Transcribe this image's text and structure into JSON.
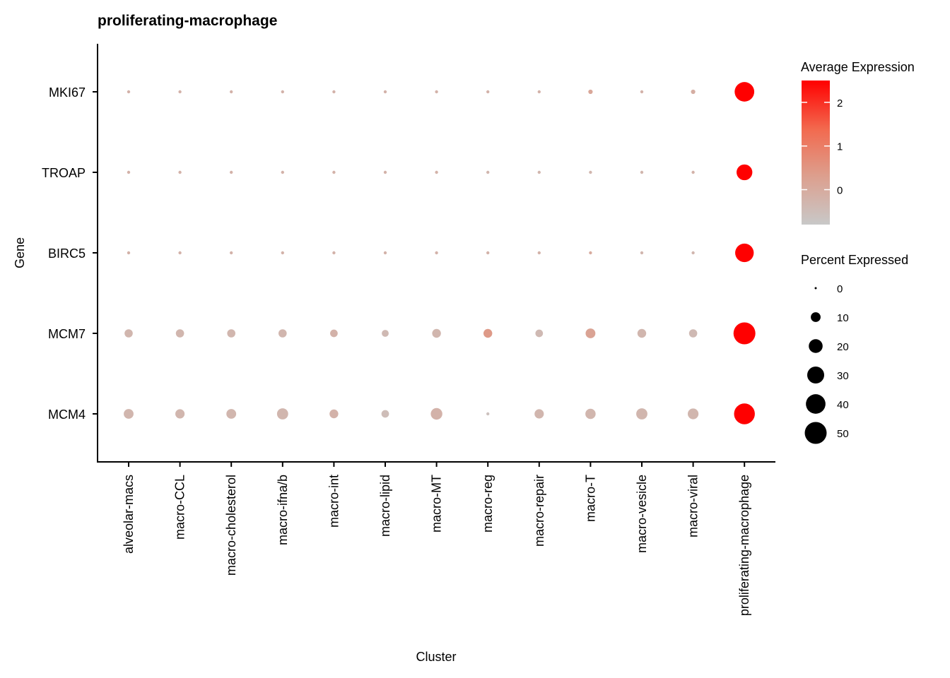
{
  "chart_data": {
    "type": "scatter",
    "title": "proliferating-macrophage",
    "xlabel": "Cluster",
    "ylabel": "Gene",
    "categories": [
      "alveolar-macs",
      "macro-CCL",
      "macro-cholesterol",
      "macro-ifna/b",
      "macro-int",
      "macro-lipid",
      "macro-MT",
      "macro-reg",
      "macro-repair",
      "macro-T",
      "macro-vesicle",
      "macro-viral",
      "proliferating-macrophage"
    ],
    "genes": [
      "MKI67",
      "TROAP",
      "BIRC5",
      "MCM7",
      "MCM4"
    ],
    "series": [
      {
        "gene": "MKI67",
        "avg_expression": [
          -0.2,
          -0.2,
          -0.2,
          -0.2,
          -0.2,
          -0.2,
          -0.2,
          -0.2,
          -0.2,
          0.1,
          -0.2,
          -0.1,
          2.5
        ],
        "pct_expressed": [
          1,
          1,
          1,
          1,
          1,
          1,
          1,
          1,
          1,
          2,
          1,
          2,
          40
        ]
      },
      {
        "gene": "TROAP",
        "avg_expression": [
          -0.2,
          -0.2,
          -0.2,
          -0.2,
          -0.2,
          -0.2,
          -0.2,
          -0.3,
          -0.3,
          -0.3,
          -0.3,
          -0.2,
          2.5
        ],
        "pct_expressed": [
          1,
          1,
          1,
          1,
          1,
          1,
          1,
          1,
          1,
          1,
          1,
          1,
          26
        ]
      },
      {
        "gene": "BIRC5",
        "avg_expression": [
          -0.2,
          -0.2,
          -0.2,
          -0.2,
          -0.2,
          -0.2,
          -0.2,
          -0.2,
          -0.2,
          0.0,
          -0.3,
          -0.3,
          2.5
        ],
        "pct_expressed": [
          1,
          1,
          1,
          1,
          1,
          1,
          1,
          1,
          1,
          1,
          1,
          1,
          36
        ]
      },
      {
        "gene": "MCM7",
        "avg_expression": [
          -0.3,
          -0.3,
          -0.3,
          -0.3,
          -0.2,
          -0.4,
          -0.3,
          0.4,
          -0.4,
          0.2,
          -0.3,
          -0.4,
          2.5
        ],
        "pct_expressed": [
          7,
          7,
          7,
          7,
          6,
          5,
          8,
          8,
          6,
          10,
          8,
          7,
          50
        ]
      },
      {
        "gene": "MCM4",
        "avg_expression": [
          -0.3,
          -0.3,
          -0.3,
          -0.3,
          -0.2,
          -0.5,
          -0.2,
          -0.6,
          -0.3,
          -0.3,
          -0.3,
          -0.3,
          2.5
        ],
        "pct_expressed": [
          10,
          9,
          10,
          13,
          8,
          6,
          14,
          1,
          9,
          11,
          13,
          12,
          45
        ]
      }
    ],
    "legends": {
      "color": {
        "title": "Average Expression",
        "ticks": [
          0,
          1,
          2
        ],
        "range": [
          -0.8,
          2.5
        ],
        "low_color": "#c8c8c8",
        "high_color": "#ff0000"
      },
      "size": {
        "title": "Percent Expressed",
        "breaks": [
          0,
          10,
          20,
          30,
          40,
          50
        ]
      }
    },
    "grid": false,
    "legend_position": "right"
  }
}
